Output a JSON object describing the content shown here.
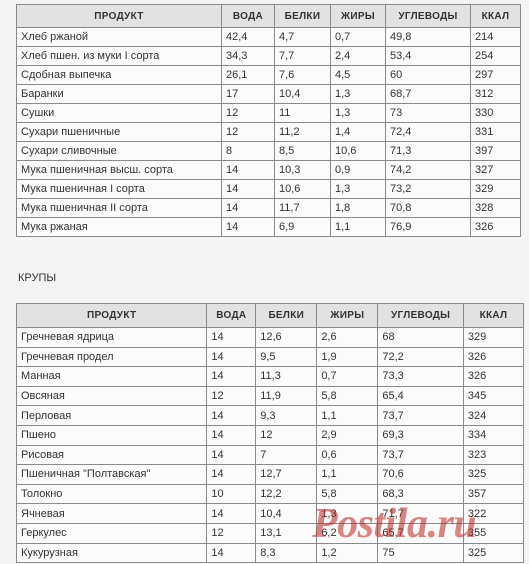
{
  "bread_table": {
    "headers": [
      "ПРОДУКТ",
      "ВОДА",
      "БЕЛКИ",
      "ЖИРЫ",
      "УГЛЕВОДЫ",
      "ККАЛ"
    ],
    "rows": [
      [
        "Хлеб ржаной",
        "42,4",
        "4,7",
        "0,7",
        "49,8",
        "214"
      ],
      [
        "Хлеб пшен. из муки I сорта",
        "34,3",
        "7,7",
        "2,4",
        "53,4",
        "254"
      ],
      [
        "Сдобная выпечка",
        "26,1",
        "7,6",
        "4,5",
        "60",
        "297"
      ],
      [
        "Баранки",
        "17",
        "10,4",
        "1,3",
        "68,7",
        "312"
      ],
      [
        "Сушки",
        "12",
        "11",
        "1,3",
        "73",
        "330"
      ],
      [
        "Сухари пшеничные",
        "12",
        "11,2",
        "1,4",
        "72,4",
        "331"
      ],
      [
        "Сухари сливочные",
        "8",
        "8,5",
        "10,6",
        "71,3",
        "397"
      ],
      [
        "Мука пшеничная высш. сорта",
        "14",
        "10,3",
        "0,9",
        "74,2",
        "327"
      ],
      [
        "Мука пшеничная I сорта",
        "14",
        "10,6",
        "1,3",
        "73,2",
        "329"
      ],
      [
        "Мука пшеничная II сорта",
        "14",
        "11,7",
        "1,8",
        "70,8",
        "328"
      ],
      [
        "Мука ржаная",
        "14",
        "6,9",
        "1,1",
        "76,9",
        "326"
      ]
    ]
  },
  "section_label": "КРУПЫ",
  "cereals_table": {
    "headers": [
      "ПРОДУКТ",
      "ВОДА",
      "БЕЛКИ",
      "ЖИРЫ",
      "УГЛЕВОДЫ",
      "ККАЛ"
    ],
    "rows": [
      [
        "Гречневая ядрица",
        "14",
        "12,6",
        "2,6",
        "68",
        "329"
      ],
      [
        "Гречневая продел",
        "14",
        "9,5",
        "1,9",
        "72,2",
        "326"
      ],
      [
        "Манная",
        "14",
        "11,3",
        "0,7",
        "73,3",
        "326"
      ],
      [
        "Овсяная",
        "12",
        "11,9",
        "5,8",
        "65,4",
        "345"
      ],
      [
        "Перловая",
        "14",
        "9,3",
        "1,1",
        "73,7",
        "324"
      ],
      [
        "Пшено",
        "14",
        "12",
        "2,9",
        "69,3",
        "334"
      ],
      [
        "Рисовая",
        "14",
        "7",
        "0,6",
        "73,7",
        "323"
      ],
      [
        "Пшеничная \"Полтавская\"",
        "14",
        "12,7",
        "1,1",
        "70,6",
        "325"
      ],
      [
        "Толокно",
        "10",
        "12,2",
        "5,8",
        "68,3",
        "357"
      ],
      [
        "Ячневая",
        "14",
        "10,4",
        "1,3",
        "71,7",
        "322"
      ],
      [
        "Геркулес",
        "12",
        "13,1",
        "6,2",
        "65,7",
        "355"
      ],
      [
        "Кукурузная",
        "14",
        "8,3",
        "1,2",
        "75",
        "325"
      ]
    ]
  },
  "watermark": "Postila.ru"
}
